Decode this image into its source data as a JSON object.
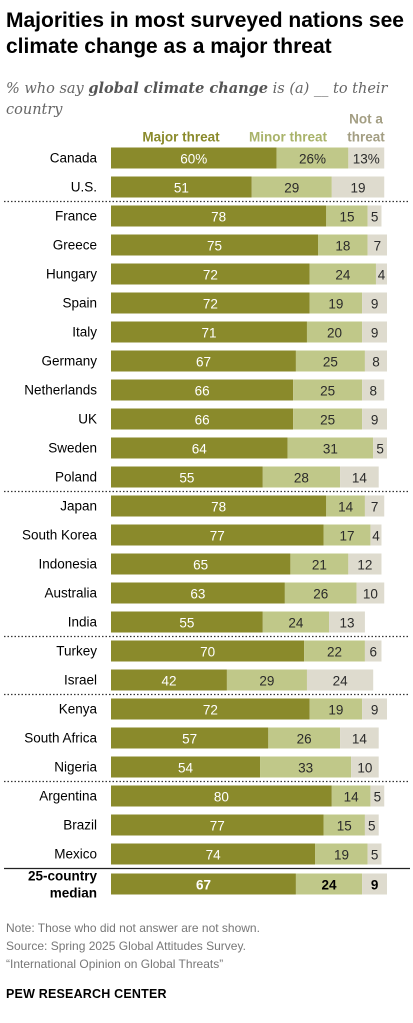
{
  "header": {
    "title": "Majorities in most surveyed nations see climate change as a major threat",
    "subtitle_pre": "% who say ",
    "subtitle_bold": "global climate change",
    "subtitle_post": " is (a) __ to their country"
  },
  "chart_data": {
    "type": "bar",
    "stacked": true,
    "orientation": "horizontal",
    "legend_position": "top",
    "series": [
      {
        "name": "Major threat",
        "color": "#8a8a2b",
        "text_color": "#ffffff"
      },
      {
        "name": "Minor threat",
        "color": "#c0c889",
        "text_color": "#2b2b2b"
      },
      {
        "name": "Not a threat",
        "color": "#dedbce",
        "text_color": "#2b2b2b"
      }
    ],
    "groups": [
      {
        "rows": [
          {
            "label": "Canada",
            "values": [
              60,
              26,
              13
            ],
            "labels": [
              "60%",
              "26%",
              "13%"
            ]
          },
          {
            "label": "U.S.",
            "values": [
              51,
              29,
              19
            ]
          }
        ]
      },
      {
        "rows": [
          {
            "label": "France",
            "values": [
              78,
              15,
              5
            ]
          },
          {
            "label": "Greece",
            "values": [
              75,
              18,
              7
            ]
          },
          {
            "label": "Hungary",
            "values": [
              72,
              24,
              4
            ]
          },
          {
            "label": "Spain",
            "values": [
              72,
              19,
              9
            ]
          },
          {
            "label": "Italy",
            "values": [
              71,
              20,
              9
            ]
          },
          {
            "label": "Germany",
            "values": [
              67,
              25,
              8
            ]
          },
          {
            "label": "Netherlands",
            "values": [
              66,
              25,
              8
            ]
          },
          {
            "label": "UK",
            "values": [
              66,
              25,
              9
            ]
          },
          {
            "label": "Sweden",
            "values": [
              64,
              31,
              5
            ]
          },
          {
            "label": "Poland",
            "values": [
              55,
              28,
              14
            ]
          }
        ]
      },
      {
        "rows": [
          {
            "label": "Japan",
            "values": [
              78,
              14,
              7
            ]
          },
          {
            "label": "South Korea",
            "values": [
              77,
              17,
              4
            ]
          },
          {
            "label": "Indonesia",
            "values": [
              65,
              21,
              12
            ]
          },
          {
            "label": "Australia",
            "values": [
              63,
              26,
              10
            ]
          },
          {
            "label": "India",
            "values": [
              55,
              24,
              13
            ]
          }
        ]
      },
      {
        "rows": [
          {
            "label": "Turkey",
            "values": [
              70,
              22,
              6
            ]
          },
          {
            "label": "Israel",
            "values": [
              42,
              29,
              24
            ]
          }
        ]
      },
      {
        "rows": [
          {
            "label": "Kenya",
            "values": [
              72,
              19,
              9
            ]
          },
          {
            "label": "South Africa",
            "values": [
              57,
              26,
              14
            ]
          },
          {
            "label": "Nigeria",
            "values": [
              54,
              33,
              10
            ]
          }
        ]
      },
      {
        "rows": [
          {
            "label": "Argentina",
            "values": [
              80,
              14,
              5
            ]
          },
          {
            "label": "Brazil",
            "values": [
              77,
              15,
              5
            ]
          },
          {
            "label": "Mexico",
            "values": [
              74,
              19,
              5
            ]
          }
        ]
      }
    ],
    "median": {
      "label_line1": "25-country",
      "label_line2": "median",
      "values": [
        67,
        24,
        9
      ]
    }
  },
  "footer": {
    "note": "Note: Those who did not answer are not shown.",
    "source": "Source: Spring 2025 Global Attitudes Survey.",
    "report": "“International Opinion on Global Threats”",
    "org": "PEW RESEARCH CENTER"
  }
}
